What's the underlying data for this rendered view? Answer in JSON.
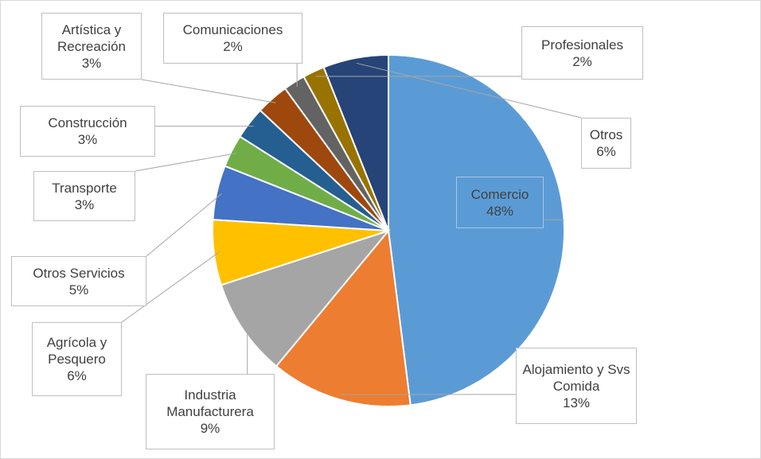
{
  "chart_data": {
    "type": "pie",
    "categories": [
      "Comercio",
      "Alojamiento y Svs Comida",
      "Industria Manufacturera",
      "Agrícola y Pesquero",
      "Otros Servicios",
      "Transporte",
      "Construcción",
      "Artística y Recreación",
      "Comunicaciones",
      "Profesionales",
      "Otros"
    ],
    "values": [
      48,
      13,
      9,
      6,
      5,
      3,
      3,
      3,
      2,
      2,
      6
    ],
    "value_labels": [
      "48%",
      "13%",
      "9%",
      "6%",
      "5%",
      "3%",
      "3%",
      "3%",
      "2%",
      "2%",
      "6%"
    ],
    "colors": [
      "#5b9bd5",
      "#ed7d31",
      "#a5a5a5",
      "#ffc000",
      "#4472c4",
      "#70ad47",
      "#255e91",
      "#9e480e",
      "#636363",
      "#997300",
      "#264478"
    ]
  }
}
